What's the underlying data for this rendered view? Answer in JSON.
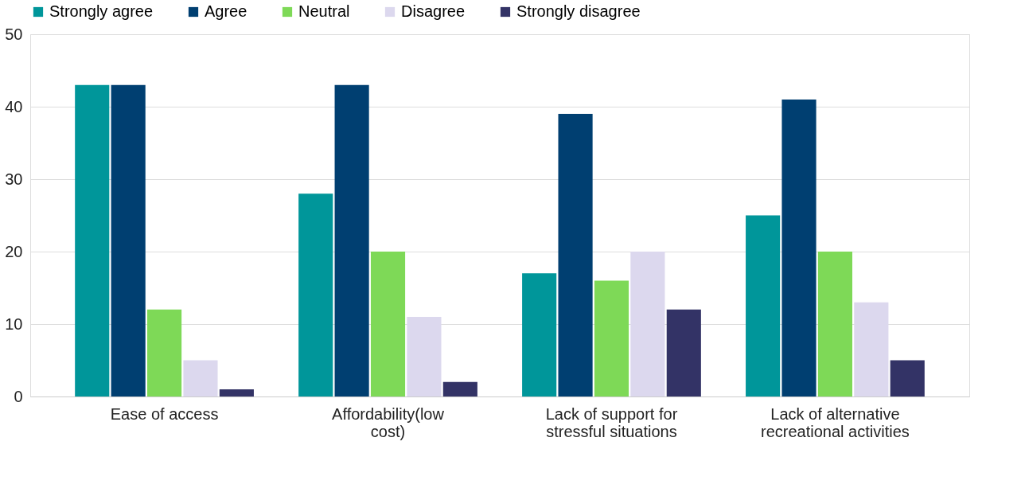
{
  "chart_data": {
    "type": "bar",
    "categories": [
      "Ease of access",
      "Affordability(low cost)",
      "Lack of support for stressful situations",
      "Lack of alternative recreational activities"
    ],
    "series": [
      {
        "name": "Strongly agree",
        "color": "#00969a",
        "values": [
          43,
          28,
          17,
          25
        ]
      },
      {
        "name": "Agree",
        "color": "#003f71",
        "values": [
          43,
          43,
          39,
          41
        ]
      },
      {
        "name": "Neutral",
        "color": "#7ed957",
        "values": [
          12,
          20,
          16,
          20
        ]
      },
      {
        "name": "Disagree",
        "color": "#dcd8ee",
        "values": [
          5,
          11,
          20,
          13
        ]
      },
      {
        "name": "Strongly disagree",
        "color": "#333366",
        "values": [
          1,
          2,
          12,
          5
        ]
      }
    ],
    "ylim": [
      0,
      50
    ],
    "yticks": [
      0,
      10,
      20,
      30,
      40,
      50
    ],
    "grid": "y",
    "legend": "top"
  }
}
